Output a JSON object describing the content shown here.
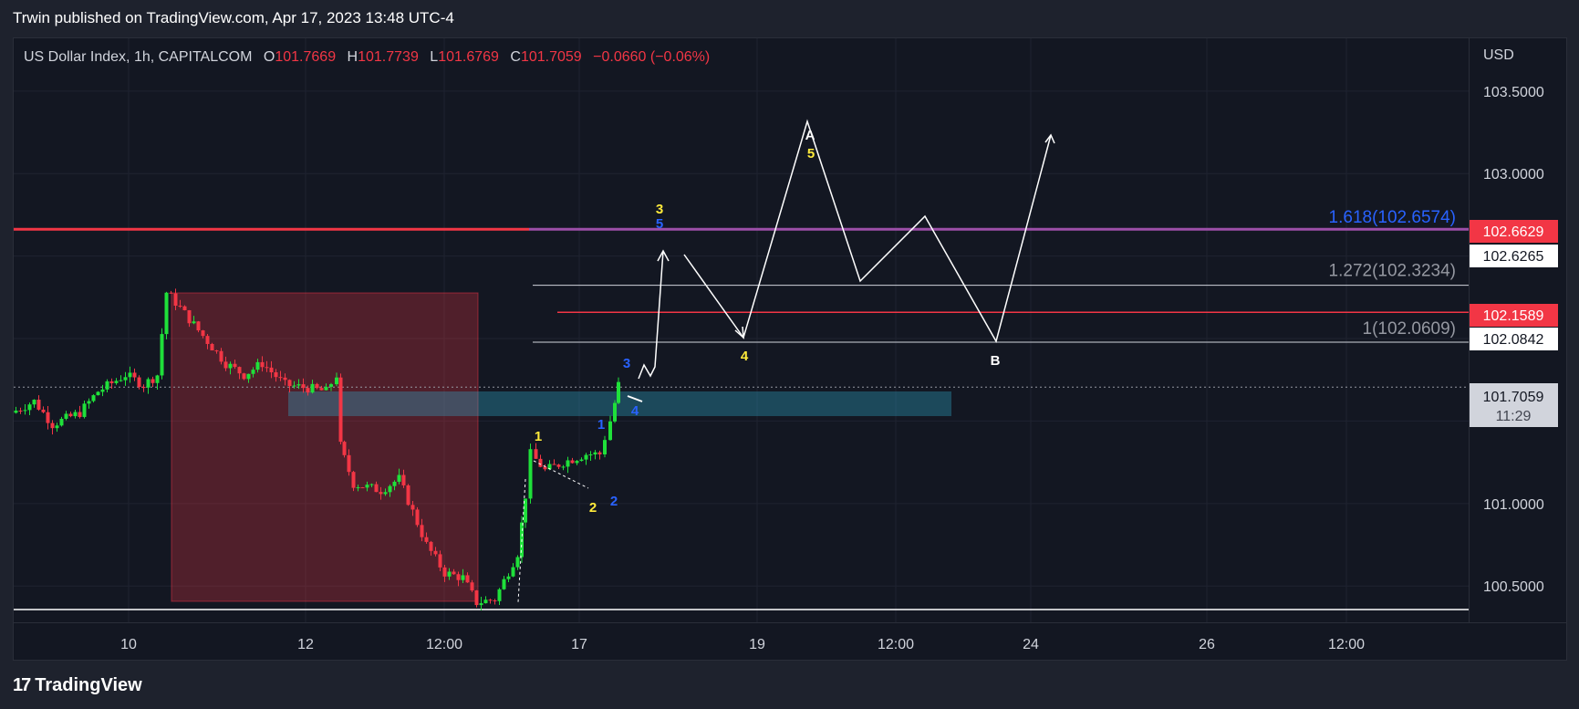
{
  "header": {
    "publisher_line": "Trwin published on TradingView.com, Apr 17, 2023 13:48 UTC-4"
  },
  "legend": {
    "symbol": "US Dollar Index, 1h, CAPITALCOM",
    "open_label": "O",
    "open": "101.7669",
    "high_label": "H",
    "high": "101.7739",
    "low_label": "L",
    "low": "101.6769",
    "close_label": "C",
    "close": "101.7059",
    "change": "−0.0660 (−0.06%)"
  },
  "currency": "USD",
  "footer": {
    "brand": "TradingView",
    "logo_glyph": "17"
  },
  "colors": {
    "up": "#22ab94",
    "up_bright": "#1fe03a",
    "down": "#f23645",
    "bg": "#131722",
    "fib": "#2962ff"
  },
  "chart_data": {
    "type": "candlestick",
    "title": "US Dollar Index, 1h, CAPITALCOM",
    "y_range": [
      100.28,
      103.82
    ],
    "y_ticks": [
      "103.5000",
      "103.0000",
      "102.5000",
      "102.0000",
      "101.5000",
      "101.0000",
      "100.5000"
    ],
    "y_tick_values": [
      103.5,
      103.0,
      102.5,
      102.0,
      101.5,
      101.0,
      100.5
    ],
    "x_ticks": [
      "10",
      "12",
      "12:00",
      "17",
      "19",
      "12:00",
      "24",
      "26",
      "12:00"
    ],
    "x_tick_index": [
      0,
      1,
      2,
      3,
      4,
      5,
      6,
      7,
      8
    ],
    "price_labels": [
      {
        "value": "102.6629",
        "style": "red"
      },
      {
        "value": "102.6265",
        "style": "white"
      },
      {
        "value": "102.1589",
        "style": "red"
      },
      {
        "value": "102.0842",
        "style": "white"
      },
      {
        "value": "101.7059",
        "style": "last"
      }
    ],
    "countdown": "11:29",
    "price_label_values": [
      102.6629,
      102.6265,
      102.1589,
      102.0842,
      101.7059
    ],
    "fib_levels": [
      {
        "label": "1.618(102.6574)",
        "value": 102.6574,
        "color": "#2962ff"
      },
      {
        "label": "1.272(102.3234)",
        "value": 102.3234,
        "color": "#9598a1"
      },
      {
        "label": "1(102.0609)",
        "value": 102.0609,
        "color": "#9598a1"
      }
    ],
    "horizontal_lines": [
      {
        "value": 102.6629,
        "color": "#f23645"
      },
      {
        "value": 102.1589,
        "color": "#f23645"
      },
      {
        "value": 100.3571,
        "color": "#ffffff"
      }
    ],
    "wave_labels": {
      "yellow": [
        "1",
        "2",
        "3",
        "4",
        "5"
      ],
      "blue": [
        "1",
        "2",
        "3",
        "4",
        "5"
      ],
      "white": [
        "A",
        "B"
      ]
    },
    "ohlc_last": {
      "open": 101.7669,
      "high": 101.7739,
      "low": 101.6769,
      "close": 101.7059
    }
  }
}
